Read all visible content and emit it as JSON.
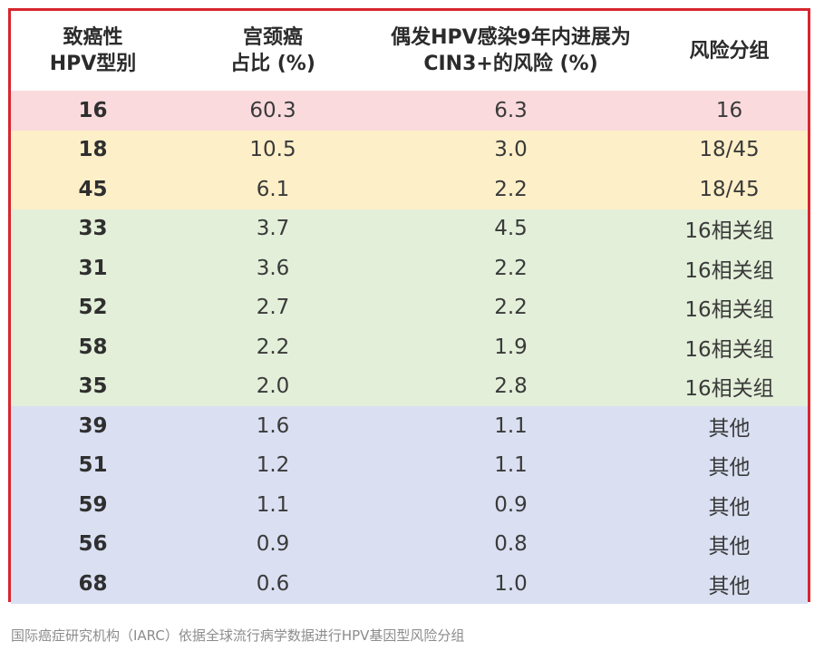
{
  "table": {
    "headers": [
      {
        "line1": "致癌性",
        "line2": "HPV型别"
      },
      {
        "line1": "宫颈癌",
        "line2": "占比 (%)"
      },
      {
        "line1": "偶发HPV感染9年内进展为",
        "line2": "CIN3+的风险 (%)"
      },
      {
        "line1": "风险分组",
        "line2": ""
      }
    ],
    "rows": [
      {
        "group": "red",
        "type": "16",
        "share": "60.3",
        "risk": "6.3",
        "risk_group": "16"
      },
      {
        "group": "yellow",
        "type": "18",
        "share": "10.5",
        "risk": "3.0",
        "risk_group": "18/45"
      },
      {
        "group": "yellow",
        "type": "45",
        "share": "6.1",
        "risk": "2.2",
        "risk_group": "18/45"
      },
      {
        "group": "green",
        "type": "33",
        "share": "3.7",
        "risk": "4.5",
        "risk_group": "16相关组"
      },
      {
        "group": "green",
        "type": "31",
        "share": "3.6",
        "risk": "2.2",
        "risk_group": "16相关组"
      },
      {
        "group": "green",
        "type": "52",
        "share": "2.7",
        "risk": "2.2",
        "risk_group": "16相关组"
      },
      {
        "group": "green",
        "type": "58",
        "share": "2.2",
        "risk": "1.9",
        "risk_group": "16相关组"
      },
      {
        "group": "green",
        "type": "35",
        "share": "2.0",
        "risk": "2.8",
        "risk_group": "16相关组"
      },
      {
        "group": "blue",
        "type": "39",
        "share": "1.6",
        "risk": "1.1",
        "risk_group": "其他"
      },
      {
        "group": "blue",
        "type": "51",
        "share": "1.2",
        "risk": "1.1",
        "risk_group": "其他"
      },
      {
        "group": "blue",
        "type": "59",
        "share": "1.1",
        "risk": "0.9",
        "risk_group": "其他"
      },
      {
        "group": "blue",
        "type": "56",
        "share": "0.9",
        "risk": "0.8",
        "risk_group": "其他"
      },
      {
        "group": "blue",
        "type": "68",
        "share": "0.6",
        "risk": "1.0",
        "risk_group": "其他"
      }
    ]
  },
  "colors": {
    "border": "#d7262e",
    "red": "#fadadd",
    "yellow": "#fdefc8",
    "green": "#e3efd9",
    "blue": "#dae0f2"
  },
  "caption": "国际癌症研究机构（IARC）依据全球流行病学数据进行HPV基因型风险分组"
}
